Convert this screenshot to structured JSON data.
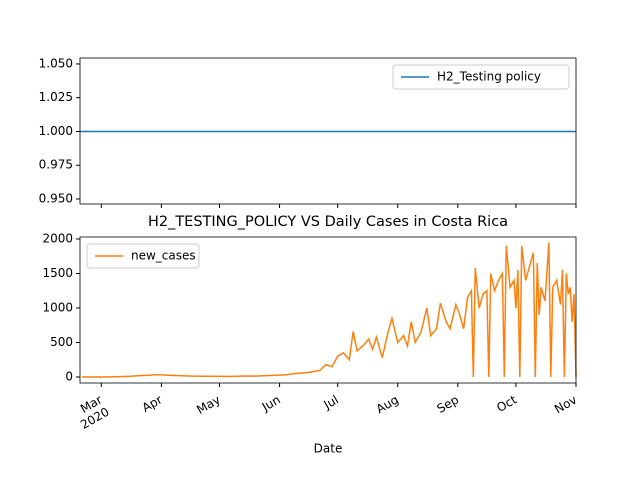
{
  "chart_data": [
    {
      "type": "line",
      "legend": "upper right",
      "xlim": [
        -11,
        245
      ],
      "ylim": [
        0.9463,
        1.0544
      ],
      "xticks": [
        0,
        31,
        61,
        92,
        122,
        153,
        184,
        214,
        245
      ],
      "yticks": [
        {
          "value": 0.95,
          "label": "0.950"
        },
        {
          "value": 0.975,
          "label": "0.975"
        },
        {
          "value": 1.0,
          "label": "1.000"
        },
        {
          "value": 1.025,
          "label": "1.025"
        },
        {
          "value": 1.05,
          "label": "1.050"
        }
      ],
      "x": [
        -11,
        245
      ],
      "series": [
        {
          "name": "H2_Testing policy",
          "color": "#1f77b4",
          "values": [
            1,
            1
          ]
        }
      ]
    },
    {
      "type": "line",
      "legend": "upper left",
      "title": "H2_TESTING_POLICY VS Daily Cases in Costa Rica",
      "xlabel": "Date",
      "x_year_label": "2020",
      "xlim": [
        -11,
        245
      ],
      "ylim": [
        -87,
        2029
      ],
      "xticks": [
        {
          "value": 0,
          "label": "Mar"
        },
        {
          "value": 31,
          "label": "Apr"
        },
        {
          "value": 61,
          "label": "May"
        },
        {
          "value": 92,
          "label": "Jun"
        },
        {
          "value": 122,
          "label": "Jul"
        },
        {
          "value": 153,
          "label": "Aug"
        },
        {
          "value": 184,
          "label": "Sep"
        },
        {
          "value": 214,
          "label": "Oct"
        },
        {
          "value": 245,
          "label": "Nov"
        }
      ],
      "yticks": [
        0,
        500,
        1000,
        1500,
        2000
      ],
      "x": [
        -10,
        -5,
        0,
        5,
        10,
        15,
        20,
        25,
        28,
        31,
        35,
        40,
        45,
        50,
        55,
        60,
        65,
        70,
        75,
        80,
        85,
        90,
        95,
        100,
        105,
        110,
        113,
        116,
        119,
        122,
        125,
        128,
        130,
        132,
        135,
        138,
        140,
        142,
        145,
        148,
        150,
        153,
        156,
        158,
        160,
        162,
        165,
        168,
        170,
        173,
        175,
        178,
        180,
        183,
        185,
        187,
        189,
        191,
        192,
        193,
        195,
        197,
        199,
        200,
        201,
        203,
        205,
        207,
        208,
        209,
        211,
        213,
        214,
        215,
        216,
        217,
        219,
        221,
        223,
        224,
        225,
        226,
        227,
        229,
        231,
        232,
        233,
        235,
        237,
        238,
        239,
        240,
        241,
        242,
        243,
        244,
        245
      ],
      "series": [
        {
          "name": "new_cases",
          "color": "#ff7f0e",
          "values": [
            0,
            0,
            0,
            2,
            5,
            10,
            20,
            25,
            35,
            30,
            25,
            20,
            15,
            10,
            10,
            10,
            8,
            10,
            15,
            12,
            20,
            25,
            30,
            50,
            60,
            80,
            100,
            180,
            150,
            300,
            350,
            250,
            660,
            380,
            450,
            550,
            400,
            580,
            280,
            650,
            850,
            500,
            600,
            450,
            800,
            500,
            650,
            1000,
            600,
            700,
            1070,
            800,
            700,
            1050,
            900,
            700,
            1150,
            1250,
            0,
            1580,
            1000,
            1200,
            1250,
            0,
            1500,
            1250,
            1400,
            1500,
            0,
            1900,
            1300,
            1400,
            1000,
            1550,
            0,
            1900,
            1400,
            1600,
            1800,
            0,
            1650,
            900,
            1300,
            1100,
            1950,
            0,
            1300,
            1400,
            1050,
            1550,
            0,
            1500,
            1200,
            1300,
            800,
            1200,
            0
          ]
        }
      ]
    }
  ]
}
